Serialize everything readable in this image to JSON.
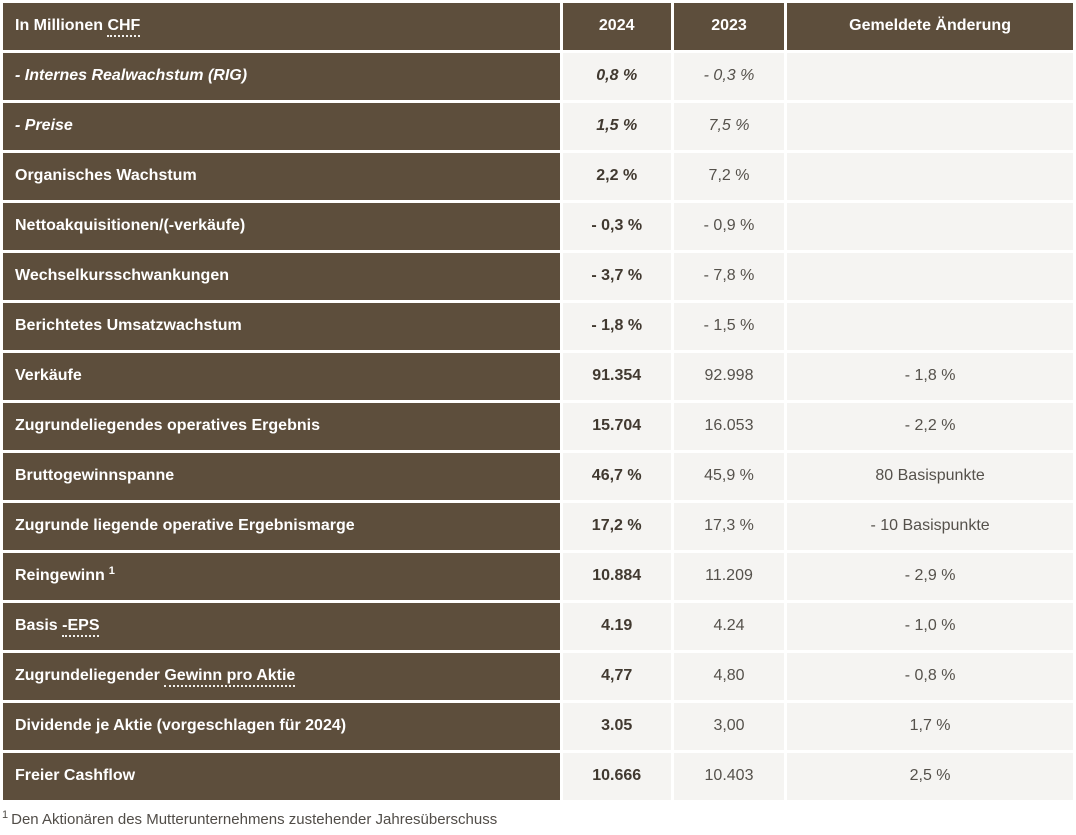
{
  "chart_data": {
    "type": "table",
    "title": "In Millionen CHF",
    "header": {
      "label_pre": "In Millionen ",
      "label_term": "CHF",
      "col_2024": "2024",
      "col_2023": "2023",
      "col_change": "Gemeldete Änderung"
    },
    "rows": [
      {
        "label": "- Internes Realwachstum (RIG)",
        "italic": true,
        "v2024": "0,8 %",
        "v2023": "- 0,3 %",
        "change": ""
      },
      {
        "label": "- Preise",
        "italic": true,
        "v2024": "1,5 %",
        "v2023": "7,5 %",
        "change": ""
      },
      {
        "label": "Organisches Wachstum",
        "v2024": "2,2 %",
        "v2023": "7,2 %",
        "change": ""
      },
      {
        "label": "Nettoakquisitionen/(-verkäufe)",
        "v2024": "- 0,3 %",
        "v2023": "- 0,9 %",
        "change": ""
      },
      {
        "label": "Wechselkursschwankungen",
        "v2024": "- 3,7 %",
        "v2023": "- 7,8 %",
        "change": ""
      },
      {
        "label": "Berichtetes Umsatzwachstum",
        "v2024": "- 1,8 %",
        "v2023": "- 1,5 %",
        "change": ""
      },
      {
        "label": "Verkäufe",
        "v2024": "91.354",
        "v2023": "92.998",
        "change": "- 1,8 %"
      },
      {
        "label": "Zugrundeliegendes operatives Ergebnis",
        "v2024": "15.704",
        "v2023": "16.053",
        "change": "- 2,2 %"
      },
      {
        "label": "Bruttogewinnspanne",
        "v2024": "46,7 %",
        "v2023": "45,9 %",
        "change": "80 Basispunkte"
      },
      {
        "label": "Zugrunde liegende operative Ergebnismarge",
        "v2024": "17,2 %",
        "v2023": "17,3 %",
        "change": "- 10 Basispunkte"
      },
      {
        "label": "Reingewinn",
        "sup": "1",
        "v2024": "10.884",
        "v2023": "11.209",
        "change": "- 2,9 %"
      },
      {
        "label_pre": "Basis ",
        "term": "-EPS",
        "v2024": "4.19",
        "v2023": "4.24",
        "change": "- 1,0 %"
      },
      {
        "label_pre": "Zugrundeliegender ",
        "term": "Gewinn pro Aktie",
        "v2024": "4,77",
        "v2023": "4,80",
        "change": "- 0,8 %"
      },
      {
        "label": "Dividende je Aktie (vorgeschlagen für 2024)",
        "v2024": "3.05",
        "v2023": "3,00",
        "change": "1,7 %"
      },
      {
        "label": "Freier Cashflow",
        "v2024": "10.666",
        "v2023": "10.403",
        "change": "2,5 %"
      }
    ],
    "footnote": {
      "marker": "1",
      "text": "Den Aktionären des Mutterunternehmens zustehender Jahresüberschuss"
    }
  },
  "colors": {
    "header_bg": "#5d4e3c",
    "cell_bg": "#f5f4f2",
    "gutter": "#ffffff",
    "label_text": "#ffffff",
    "value_2024_text": "#413930",
    "value_text": "#55514b",
    "footnote_text": "#514d48"
  }
}
